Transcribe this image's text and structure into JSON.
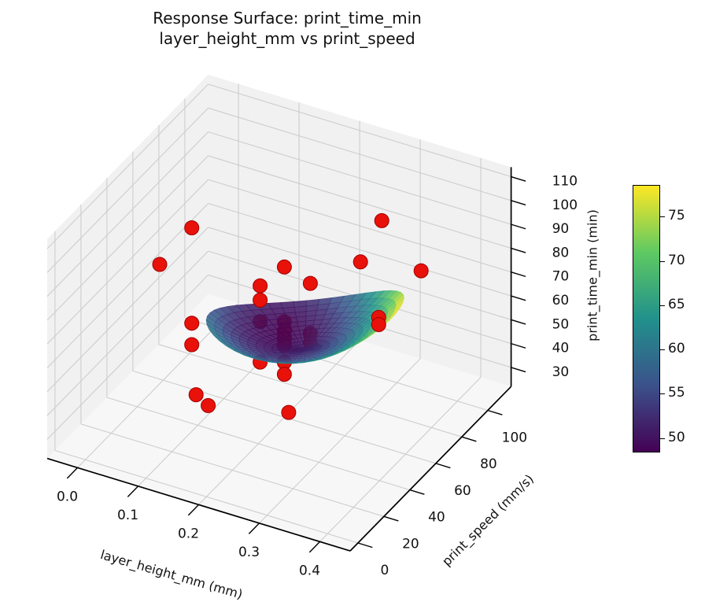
{
  "figure": {
    "title_line1": "Response Surface: print_time_min",
    "title_line2": "layer_height_mm vs print_speed"
  },
  "chart_data": {
    "type": "scatter",
    "plot_kind": "3d response-surface (viridis) with red scatter points",
    "title": "Response Surface: print_time_min — layer_height_mm vs print_speed",
    "xlabel": "layer_height_mm (mm)",
    "ylabel": "print_speed (mm/s)",
    "zlabel": "print_time_min (min)",
    "xlim": [
      -0.05,
      0.45
    ],
    "ylim": [
      -6,
      118
    ],
    "zlim": [
      22,
      114
    ],
    "xticks": {
      "values": [
        0.0,
        0.1,
        0.2,
        0.3,
        0.4
      ],
      "labels": [
        "0.0",
        "0.1",
        "0.2",
        "0.3",
        "0.4"
      ]
    },
    "yticks": {
      "values": [
        0,
        20,
        40,
        60,
        80,
        100
      ],
      "labels": [
        "0",
        "20",
        "40",
        "60",
        "80",
        "100"
      ]
    },
    "zticks": {
      "values": [
        30,
        40,
        50,
        60,
        70,
        80,
        90,
        100,
        110
      ],
      "labels": [
        "30",
        "40",
        "50",
        "60",
        "70",
        "80",
        "90",
        "100",
        "110"
      ]
    },
    "grid": true,
    "scatter": {
      "color": "#e8120b",
      "edge_color": "#a00000",
      "columns": [
        "layer_height_mm",
        "print_speed",
        "print_time_min"
      ],
      "points": [
        [
          0.09,
          40,
          104
        ],
        [
          0.08,
          20,
          99
        ],
        [
          0.2,
          60,
          85
        ],
        [
          0.16,
          60,
          74
        ],
        [
          0.16,
          60,
          68
        ],
        [
          0.2,
          80,
          67
        ],
        [
          0.24,
          100,
          68
        ],
        [
          0.275,
          100,
          88
        ],
        [
          0.34,
          100,
          72
        ],
        [
          0.27,
          100,
          47
        ],
        [
          0.27,
          100,
          44
        ],
        [
          0.2,
          80,
          46
        ],
        [
          0.2,
          80,
          42
        ],
        [
          0.09,
          40,
          64
        ],
        [
          0.09,
          40,
          55
        ],
        [
          0.14,
          20,
          49
        ],
        [
          0.16,
          20,
          46
        ],
        [
          0.25,
          40,
          39
        ],
        [
          0.16,
          60,
          59
        ],
        [
          0.16,
          60,
          42
        ],
        [
          0.2,
          60,
          62
        ],
        [
          0.2,
          60,
          58
        ],
        [
          0.2,
          60,
          55
        ],
        [
          0.2,
          60,
          52
        ],
        [
          0.2,
          60,
          45
        ],
        [
          0.2,
          60,
          40
        ]
      ]
    },
    "surface": {
      "colormap": "viridis",
      "vmin": 48.5,
      "vmax": 78.5,
      "opacity": 0.87,
      "domain": {
        "shape": "disk",
        "center_layer_height": 0.23,
        "center_print_speed": 62,
        "radius_layer_height": 0.15,
        "radius_print_speed": 30
      },
      "model_coded_quadratic": {
        "c0": 51.5,
        "cuu": 16,
        "cvv": 8.8,
        "cu": 11,
        "cv": -3,
        "cuv": 6
      },
      "z_range_shown": [
        48.8,
        78.5
      ]
    },
    "colorbar": {
      "vmin": 48.5,
      "vmax": 78.5,
      "tick_values": [
        50,
        55,
        60,
        65,
        70,
        75
      ],
      "tick_labels": [
        "50",
        "55",
        "60",
        "65",
        "70",
        "75"
      ]
    },
    "legend": null
  },
  "colors": {
    "scatter_red": "#e8120b",
    "scatter_edge": "#a00000",
    "pane_wall": "#f1f1f1",
    "pane_floor": "#f7f7f7",
    "grid_line": "#cdcdcd",
    "spine": "#000000",
    "viridis_stops": [
      "#440154",
      "#3b528b",
      "#21918c",
      "#5ec962",
      "#fde725"
    ]
  }
}
